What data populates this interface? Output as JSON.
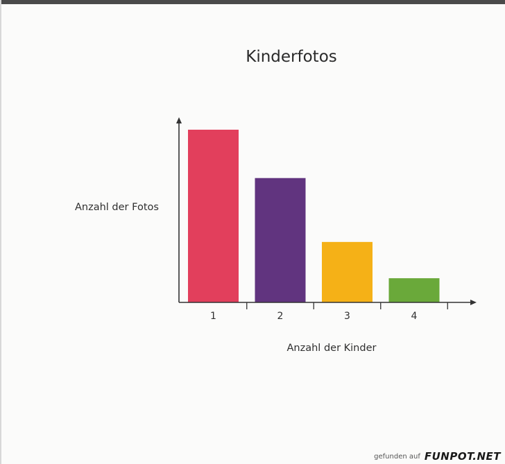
{
  "chart_data": {
    "type": "bar",
    "title": "Kinderfotos",
    "xlabel": "Anzahl der Kinder",
    "ylabel": "Anzahl der Fotos",
    "categories": [
      "1",
      "2",
      "3",
      "4"
    ],
    "values": [
      100,
      72,
      35,
      14
    ],
    "ylim": [
      0,
      105
    ],
    "grid": false,
    "colors": [
      "#e23f5c",
      "#61347f",
      "#f5b117",
      "#6aa93a"
    ]
  },
  "footer": {
    "prefix": "gefunden auf",
    "brand": "FUNPOT.NET"
  }
}
